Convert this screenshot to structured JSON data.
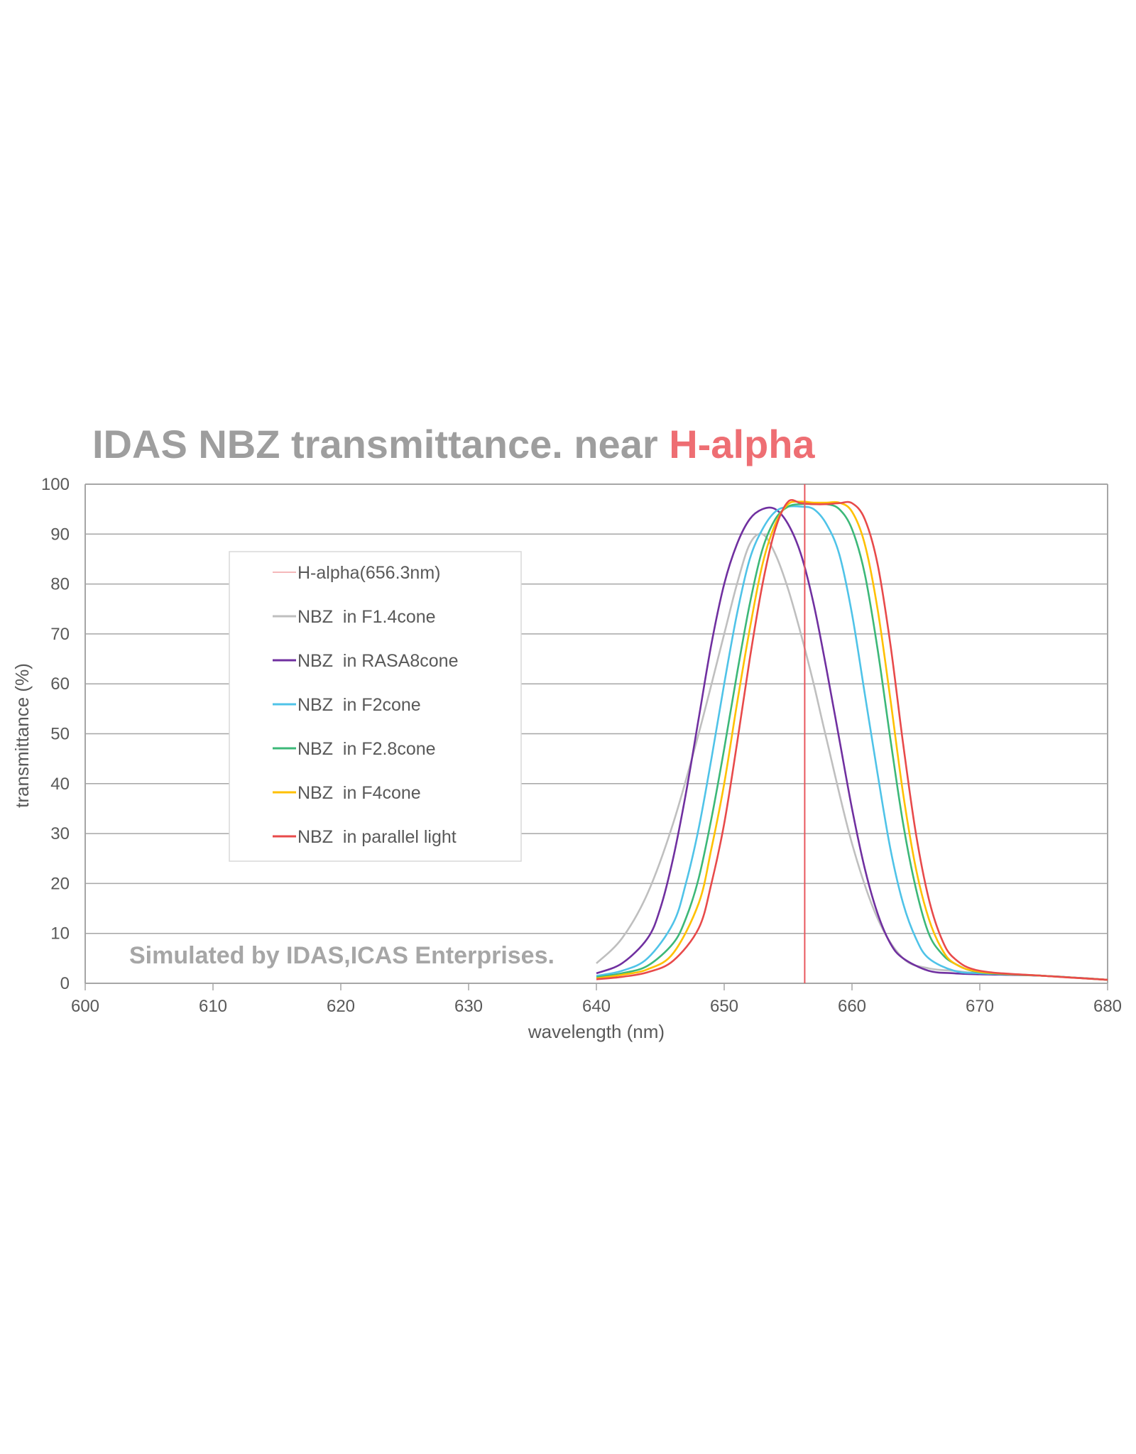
{
  "chart_data": {
    "type": "line",
    "title": {
      "main": "IDAS  NBZ transmittance.   near ",
      "accent": "H-alpha"
    },
    "xlabel": "wavelength (nm)",
    "ylabel": "transmittance (%)",
    "xlim": [
      600,
      680
    ],
    "ylim": [
      0,
      100
    ],
    "xticks": [
      600,
      610,
      620,
      630,
      640,
      650,
      660,
      670,
      680
    ],
    "yticks": [
      0,
      10,
      20,
      30,
      40,
      50,
      60,
      70,
      80,
      90,
      100
    ],
    "grid": "horizontal",
    "legend_position": "upper-left",
    "annotation": "Simulated by IDAS,ICAS Enterprises.",
    "reference_line": {
      "name": "H-alpha(656.3nm)",
      "x": 656.3,
      "color": "#e8585e"
    },
    "series": [
      {
        "name": "NBZ  in F1.4cone",
        "color": "#bfbfbf",
        "x": [
          640,
          642,
          644,
          646,
          648,
          650,
          651,
          652,
          653,
          654,
          655,
          656,
          657,
          658,
          660,
          662,
          664,
          666,
          668,
          670,
          675,
          680
        ],
        "y": [
          4,
          9,
          18,
          32,
          50,
          70,
          80,
          88,
          90,
          86,
          79,
          70,
          60,
          49,
          28,
          13,
          5,
          3,
          2.5,
          2,
          1.5,
          0.7
        ]
      },
      {
        "name": "NBZ  in RASA8cone",
        "color": "#7030a0",
        "x": [
          640,
          642,
          644,
          645,
          646,
          647,
          648,
          649,
          650,
          651,
          652,
          653,
          654,
          655,
          656,
          657,
          658,
          659,
          660,
          661,
          662,
          663,
          664,
          666,
          668,
          670,
          675,
          680
        ],
        "y": [
          2,
          4,
          9,
          15,
          25,
          38,
          53,
          68,
          80,
          88,
          93,
          95,
          95,
          92,
          86,
          76,
          63,
          49,
          35,
          23,
          14,
          8,
          5,
          2.5,
          2,
          1.8,
          1.5,
          0.7
        ]
      },
      {
        "name": "NBZ  in F2cone",
        "color": "#4fc3e8",
        "x": [
          640,
          642,
          644,
          646,
          647,
          648,
          649,
          650,
          651,
          652,
          653,
          654,
          655,
          656,
          657,
          658,
          659,
          660,
          661,
          662,
          663,
          664,
          665,
          666,
          668,
          670,
          675,
          680
        ],
        "y": [
          1.5,
          2.5,
          5,
          12,
          20,
          31,
          45,
          60,
          74,
          85,
          91,
          94.5,
          95.5,
          95.5,
          95,
          92,
          86,
          74,
          58,
          42,
          27,
          16,
          9,
          5,
          2.5,
          2,
          1.5,
          0.7
        ]
      },
      {
        "name": "NBZ  in F2.8cone",
        "color": "#3cb878",
        "x": [
          640,
          642,
          644,
          646,
          647,
          648,
          649,
          650,
          651,
          652,
          653,
          654,
          655,
          656,
          657,
          658,
          659,
          660,
          661,
          662,
          663,
          664,
          665,
          666,
          667,
          668,
          670,
          675,
          680
        ],
        "y": [
          1.2,
          2,
          3.5,
          8,
          13,
          21,
          33,
          47,
          62,
          76,
          87,
          93,
          95.5,
          96,
          96,
          96,
          95,
          91,
          82,
          67,
          49,
          32,
          19,
          10,
          6,
          4,
          2.2,
          1.5,
          0.7
        ]
      },
      {
        "name": "NBZ  in F4cone",
        "color": "#ffc000",
        "x": [
          640,
          642,
          644,
          646,
          648,
          649,
          650,
          651,
          652,
          653,
          654,
          655,
          656,
          657,
          658,
          659,
          660,
          661,
          662,
          663,
          664,
          665,
          666,
          667,
          668,
          670,
          675,
          680
        ],
        "y": [
          1,
          1.7,
          2.8,
          6,
          16,
          27,
          40,
          56,
          71,
          84,
          92,
          96,
          96.5,
          96.3,
          96.3,
          96.3,
          94.5,
          88,
          75,
          57,
          38,
          23,
          13,
          7,
          4,
          2.3,
          1.5,
          0.7
        ]
      },
      {
        "name": "NBZ  in parallel light",
        "color": "#e84a4a",
        "x": [
          640,
          642,
          644,
          646,
          648,
          649,
          650,
          651,
          652,
          653,
          654,
          655,
          656,
          657,
          658,
          659,
          660,
          661,
          662,
          663,
          664,
          665,
          666,
          667,
          668,
          670,
          675,
          680
        ],
        "y": [
          0.8,
          1.3,
          2.2,
          4.5,
          11,
          20,
          32,
          48,
          65,
          80,
          91,
          96.5,
          96.2,
          96,
          96,
          96.2,
          96.2,
          93,
          84,
          68,
          48,
          30,
          17,
          9,
          5,
          2.5,
          1.5,
          0.7
        ]
      }
    ]
  }
}
